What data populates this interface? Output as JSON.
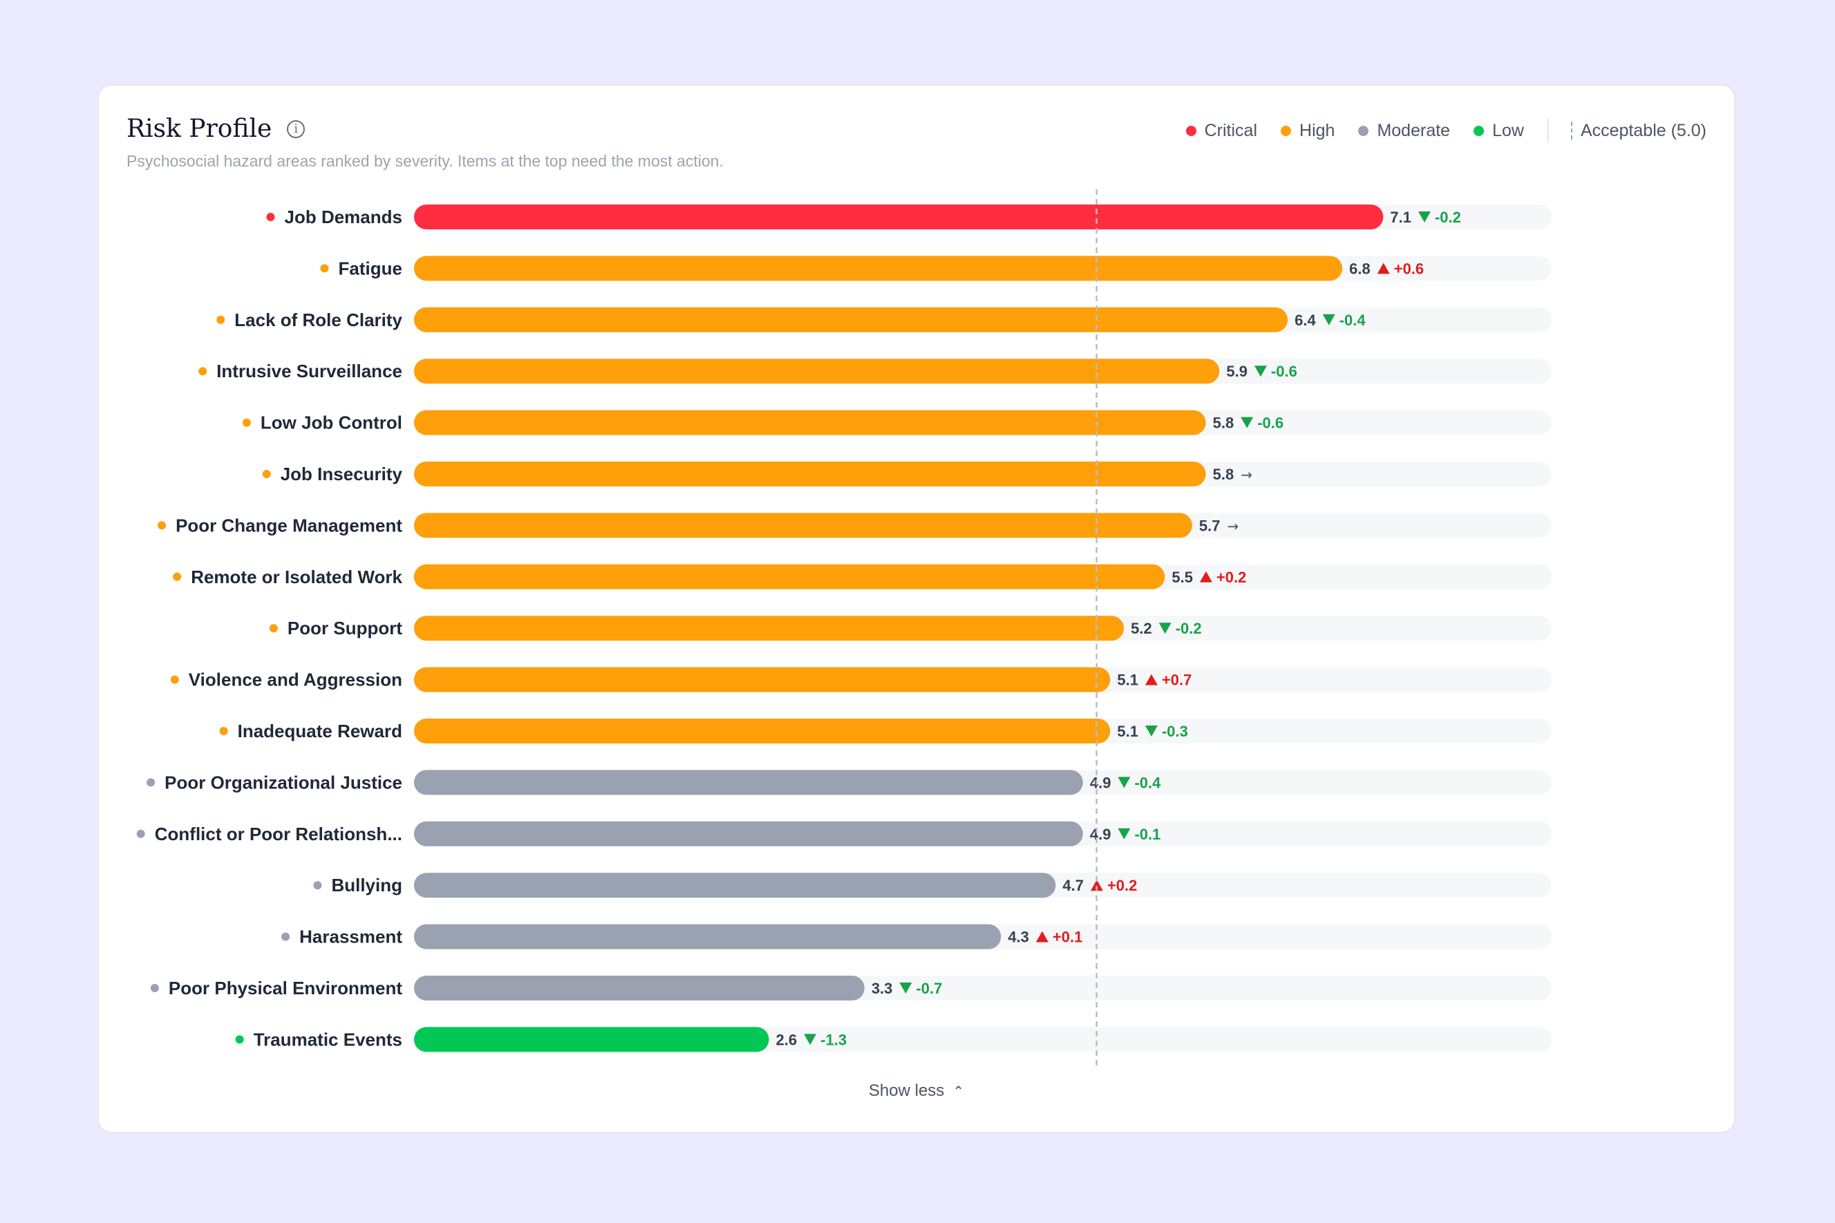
{
  "header": {
    "title": "Risk Profile",
    "subtitle": "Psychosocial hazard areas ranked by severity. Items at the top need the most action.",
    "info_icon": "info-icon"
  },
  "legend": {
    "items": [
      {
        "label": "Critical",
        "color": "#ff2d3f"
      },
      {
        "label": "High",
        "color": "#ff9f0a"
      },
      {
        "label": "Moderate",
        "color": "#9aa1b1"
      },
      {
        "label": "Low",
        "color": "#00c853"
      }
    ],
    "acceptable_label": "Acceptable (5.0)"
  },
  "chart_data": {
    "type": "bar",
    "orientation": "horizontal",
    "scale_max": 10,
    "acceptable_threshold": 5.0,
    "colors": {
      "Critical": "#ff2d3f",
      "High": "#ff9f0a",
      "Moderate": "#9aa1b1",
      "Low": "#00c853",
      "up": "#e11d1d",
      "down": "#16a34a",
      "flat": "#4b5563"
    },
    "rows": [
      {
        "label": "Job Demands",
        "value": 7.1,
        "level": "Critical",
        "change": "-0.2",
        "trend": "down"
      },
      {
        "label": "Fatigue",
        "value": 6.8,
        "level": "High",
        "change": "+0.6",
        "trend": "up"
      },
      {
        "label": "Lack of Role Clarity",
        "value": 6.4,
        "level": "High",
        "change": "-0.4",
        "trend": "down"
      },
      {
        "label": "Intrusive Surveillance",
        "value": 5.9,
        "level": "High",
        "change": "-0.6",
        "trend": "down"
      },
      {
        "label": "Low Job Control",
        "value": 5.8,
        "level": "High",
        "change": "-0.6",
        "trend": "down"
      },
      {
        "label": "Job Insecurity",
        "value": 5.8,
        "level": "High",
        "change": "",
        "trend": "flat"
      },
      {
        "label": "Poor Change Management",
        "value": 5.7,
        "level": "High",
        "change": "",
        "trend": "flat"
      },
      {
        "label": "Remote or Isolated Work",
        "value": 5.5,
        "level": "High",
        "change": "+0.2",
        "trend": "up"
      },
      {
        "label": "Poor Support",
        "value": 5.2,
        "level": "High",
        "change": "-0.2",
        "trend": "down"
      },
      {
        "label": "Violence and Aggression",
        "value": 5.1,
        "level": "High",
        "change": "+0.7",
        "trend": "up"
      },
      {
        "label": "Inadequate Reward",
        "value": 5.1,
        "level": "High",
        "change": "-0.3",
        "trend": "down"
      },
      {
        "label": "Poor Organizational Justice",
        "value": 4.9,
        "level": "Moderate",
        "change": "-0.4",
        "trend": "down"
      },
      {
        "label": "Conflict or Poor Relationsh...",
        "value": 4.9,
        "level": "Moderate",
        "change": "-0.1",
        "trend": "down"
      },
      {
        "label": "Bullying",
        "value": 4.7,
        "level": "Moderate",
        "change": "+0.2",
        "trend": "up"
      },
      {
        "label": "Harassment",
        "value": 4.3,
        "level": "Moderate",
        "change": "+0.1",
        "trend": "up"
      },
      {
        "label": "Poor Physical Environment",
        "value": 3.3,
        "level": "Moderate",
        "change": "-0.7",
        "trend": "down"
      },
      {
        "label": "Traumatic Events",
        "value": 2.6,
        "level": "Low",
        "change": "-1.3",
        "trend": "down"
      }
    ]
  },
  "footer": {
    "show_less_label": "Show less"
  }
}
